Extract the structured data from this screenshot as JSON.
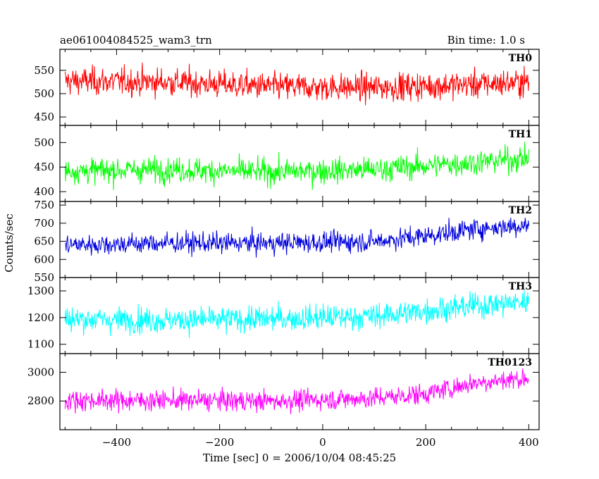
{
  "header": {
    "title": "ae061004084525_wam3_trn",
    "bin_time": "Bin time: 1.0 s"
  },
  "axes": {
    "ylabel": "Counts/sec",
    "xlabel": "Time [sec] 0 = 2006/10/04 08:45:25"
  },
  "chart_data": {
    "type": "line",
    "xlim": [
      -510,
      420
    ],
    "x_range": [
      -500,
      400
    ],
    "x_step": 1,
    "xticks": [
      -400,
      -200,
      0,
      200,
      400
    ],
    "xtick_labels": [
      "−400",
      "−200",
      "0",
      "200",
      "400"
    ],
    "grid": false,
    "series": [
      {
        "name": "TH0",
        "color": "#ff0000",
        "ylim": [
          432,
          595
        ],
        "yticks": [
          450,
          500,
          550
        ],
        "ytick_labels": [
          "450",
          "500",
          "550"
        ],
        "trend": [
          [
            -500,
            527
          ],
          [
            -300,
            525
          ],
          [
            -100,
            515
          ],
          [
            100,
            513
          ],
          [
            300,
            520
          ],
          [
            400,
            525
          ]
        ],
        "noise": 28
      },
      {
        "name": "TH1",
        "color": "#00ff00",
        "ylim": [
          380,
          535
        ],
        "yticks": [
          400,
          450,
          500
        ],
        "ytick_labels": [
          "400",
          "450",
          "500"
        ],
        "trend": [
          [
            -500,
            442
          ],
          [
            -300,
            445
          ],
          [
            -100,
            440
          ],
          [
            100,
            445
          ],
          [
            300,
            460
          ],
          [
            400,
            468
          ]
        ],
        "noise": 24
      },
      {
        "name": "TH2",
        "color": "#0000dd",
        "ylim": [
          550,
          760
        ],
        "yticks": [
          550,
          600,
          650,
          700,
          750
        ],
        "ytick_labels": [
          "550",
          "600",
          "650",
          "700",
          "750"
        ],
        "trend": [
          [
            -500,
            640
          ],
          [
            -300,
            645
          ],
          [
            -100,
            645
          ],
          [
            100,
            650
          ],
          [
            200,
            665
          ],
          [
            300,
            685
          ],
          [
            400,
            695
          ]
        ],
        "noise": 27
      },
      {
        "name": "TH3",
        "color": "#00ffff",
        "ylim": [
          1065,
          1350
        ],
        "yticks": [
          1100,
          1200,
          1300
        ],
        "ytick_labels": [
          "1100",
          "1200",
          "1300"
        ],
        "trend": [
          [
            -500,
            1195
          ],
          [
            -300,
            1190
          ],
          [
            -100,
            1195
          ],
          [
            100,
            1205
          ],
          [
            300,
            1245
          ],
          [
            400,
            1260
          ]
        ],
        "noise": 45
      },
      {
        "name": "TH0123",
        "color": "#ff00ff",
        "ylim": [
          2600,
          3130
        ],
        "yticks": [
          2800,
          3000
        ],
        "ytick_labels": [
          "2800",
          "3000"
        ],
        "trend": [
          [
            -500,
            2805
          ],
          [
            -300,
            2805
          ],
          [
            -100,
            2800
          ],
          [
            100,
            2820
          ],
          [
            200,
            2850
          ],
          [
            300,
            2930
          ],
          [
            400,
            2960
          ]
        ],
        "noise": 68
      }
    ]
  }
}
